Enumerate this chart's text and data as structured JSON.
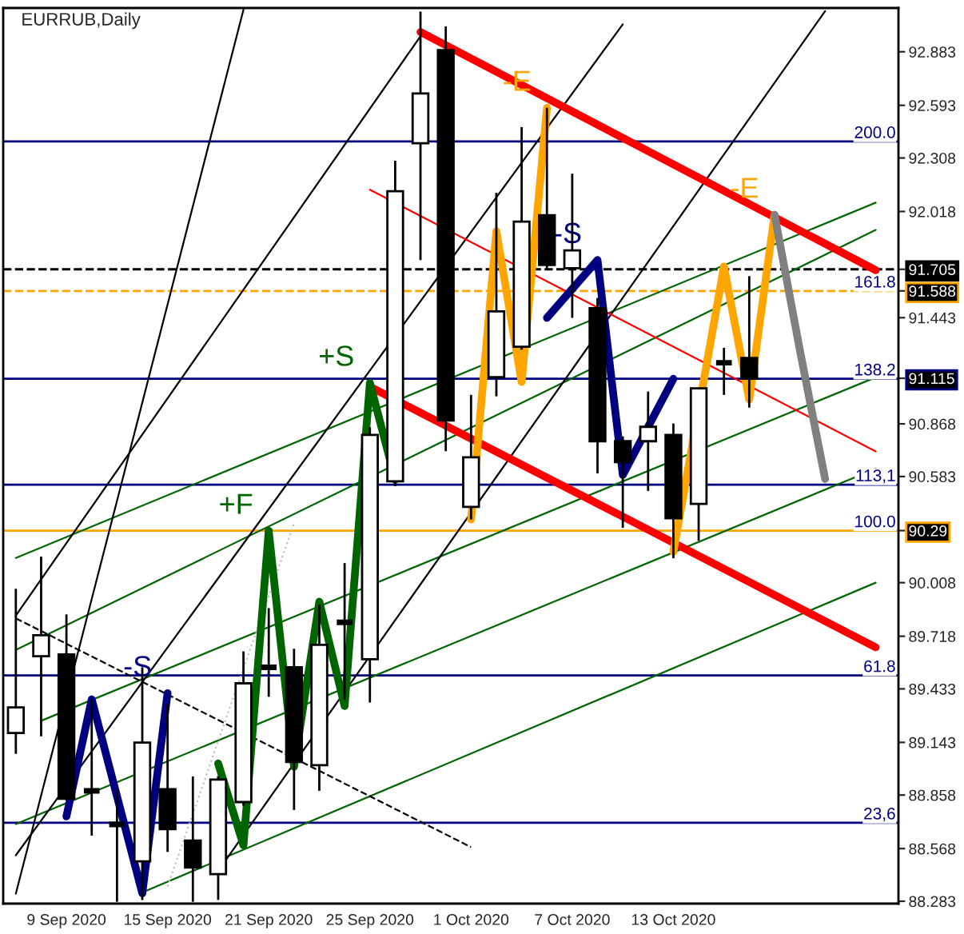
{
  "chart_data": {
    "type": "candlestick",
    "title": "EURRUB,Daily",
    "categories": [
      null,
      null,
      "9 Sep 2020",
      null,
      null,
      null,
      "15 Sep 2020",
      null,
      null,
      null,
      "21 Sep 2020",
      null,
      null,
      null,
      "25 Sep 2020",
      null,
      null,
      null,
      "1 Oct 2020",
      null,
      null,
      null,
      "7 Oct 2020",
      null,
      null,
      null,
      "13 Oct 2020",
      null,
      null,
      null,
      null,
      null,
      null,
      null,
      null
    ],
    "ohlc": [
      [
        89.194,
        89.975,
        89.081,
        89.333
      ],
      [
        89.61,
        90.149,
        89.176,
        89.723
      ],
      [
        89.619,
        89.836,
        88.829,
        88.838
      ],
      [
        88.881,
        89.376,
        88.638,
        88.881
      ],
      [
        88.699,
        88.89,
        88.28,
        88.699
      ],
      [
        88.499,
        89.55,
        88.29,
        89.142
      ],
      [
        88.89,
        89.35,
        88.55,
        88.673
      ],
      [
        88.612,
        88.959,
        88.28,
        88.465
      ],
      [
        88.43,
        88.96,
        88.29,
        88.942
      ],
      [
        88.82,
        89.636,
        88.8,
        89.463
      ],
      [
        89.55,
        89.87,
        89.39,
        89.55
      ],
      [
        89.55,
        89.65,
        88.777,
        89.037
      ],
      [
        89.02,
        89.89,
        88.881,
        89.671
      ],
      [
        89.793,
        90.114,
        89.376,
        89.793
      ],
      [
        89.593,
        90.85,
        89.359,
        90.808
      ],
      [
        90.557,
        92.293,
        90.53,
        92.128
      ],
      [
        92.388,
        93.1,
        91.755,
        92.657
      ],
      [
        92.892,
        93.02,
        90.72,
        90.886
      ],
      [
        90.418,
        91.025,
        90.35,
        90.687
      ],
      [
        91.121,
        92.119,
        91.017,
        91.477
      ],
      [
        91.286,
        92.475,
        91.27,
        91.963
      ],
      [
        91.998,
        92.58,
        91.7,
        91.728
      ],
      [
        91.711,
        92.223,
        91.442,
        91.807
      ],
      [
        91.494,
        91.55,
        90.6,
        90.774
      ],
      [
        90.774,
        90.8,
        90.305,
        90.661
      ],
      [
        90.774,
        91.043,
        90.505,
        90.852
      ],
      [
        90.808,
        90.87,
        90.14,
        90.357
      ],
      [
        90.435,
        91.06,
        90.235,
        91.06
      ],
      [
        91.199,
        91.28,
        91.025,
        91.199
      ],
      [
        91.225,
        91.668,
        90.956,
        91.112
      ],
      null,
      null,
      null,
      null,
      null
    ],
    "ylim": [
      88.27,
      93.12
    ],
    "yticks": [
      92.883,
      92.593,
      92.308,
      92.018,
      91.705,
      91.588,
      91.443,
      91.115,
      90.868,
      90.583,
      90.29,
      90.008,
      89.718,
      89.433,
      89.143,
      88.858,
      88.568,
      88.283
    ],
    "series": [
      {
        "type": "line",
        "color": "#006400",
        "values": [
          90.142,
          null,
          null,
          null,
          null,
          null,
          null,
          null,
          null,
          null,
          null,
          null,
          null,
          null,
          null,
          null,
          null,
          null,
          null,
          null,
          null,
          null,
          null,
          null,
          null,
          null,
          null,
          null,
          null,
          null,
          null,
          null,
          null,
          null,
          92.066
        ]
      },
      {
        "type": "line",
        "color": "#006400",
        "values": [
          89.644,
          null,
          null,
          null,
          null,
          null,
          null,
          null,
          null,
          null,
          null,
          null,
          null,
          null,
          null,
          null,
          null,
          null,
          null,
          null,
          null,
          null,
          null,
          null,
          null,
          null,
          null,
          null,
          null,
          null,
          null,
          null,
          null,
          null,
          91.918
        ]
      },
      {
        "type": "line",
        "color": "#006400",
        "values": [
          null,
          89.26,
          null,
          null,
          null,
          null,
          null,
          null,
          null,
          null,
          null,
          null,
          null,
          null,
          null,
          null,
          null,
          null,
          null,
          null,
          null,
          null,
          null,
          null,
          null,
          null,
          null,
          null,
          null,
          null,
          null,
          null,
          null,
          null,
          91.12
        ]
      },
      {
        "type": "line",
        "color": "#006400",
        "values": [
          88.701,
          null,
          null,
          null,
          null,
          null,
          null,
          null,
          null,
          null,
          null,
          null,
          null,
          null,
          null,
          null,
          null,
          null,
          null,
          null,
          null,
          null,
          null,
          null,
          null,
          null,
          null,
          null,
          null,
          null,
          null,
          null,
          null,
          null,
          90.625
        ]
      },
      {
        "type": "line",
        "color": "#006400",
        "values": [
          null,
          null,
          null,
          null,
          null,
          88.331,
          null,
          null,
          null,
          null,
          null,
          null,
          null,
          null,
          null,
          null,
          null,
          null,
          null,
          null,
          null,
          null,
          null,
          null,
          null,
          null,
          null,
          null,
          null,
          null,
          null,
          null,
          null,
          null,
          90.008
        ]
      },
      {
        "type": "line",
        "color": "#000000",
        "values": [
          89.83,
          null,
          null,
          null,
          null,
          null,
          null,
          null,
          null,
          null,
          null,
          null,
          null,
          null,
          null,
          null,
          92.967,
          null,
          null,
          null,
          null,
          null,
          null,
          null,
          null,
          null,
          null,
          null,
          null,
          null,
          null,
          null,
          null,
          null,
          null
        ]
      },
      {
        "type": "line",
        "color": "#000000",
        "values": [
          88.532,
          null,
          null,
          null,
          null,
          null,
          null,
          null,
          null,
          null,
          null,
          null,
          null,
          null,
          null,
          null,
          null,
          null,
          null,
          null,
          null,
          null,
          null,
          null,
          93.032,
          null,
          null,
          null,
          null,
          null,
          null,
          null,
          null,
          null,
          null
        ]
      },
      {
        "type": "line",
        "color": "#000000",
        "values": [
          null,
          null,
          null,
          null,
          null,
          null,
          null,
          null,
          88.447,
          null,
          null,
          null,
          null,
          null,
          null,
          null,
          null,
          null,
          null,
          null,
          null,
          null,
          null,
          null,
          null,
          null,
          null,
          null,
          null,
          null,
          null,
          null,
          93.103,
          null,
          null
        ]
      },
      {
        "type": "line",
        "color": "#000000",
        "values": [
          88.324,
          null,
          null,
          null,
          null,
          null,
          null,
          null,
          null,
          93.11,
          null,
          null,
          null,
          null,
          null,
          null,
          null,
          null,
          null,
          null,
          null,
          null,
          null,
          null,
          null,
          null,
          null,
          null,
          null,
          null,
          null,
          null,
          null,
          null,
          null
        ]
      },
      {
        "type": "line",
        "color": "#000000",
        "line_style": "dashed",
        "values": [
          89.815,
          null,
          null,
          null,
          null,
          null,
          null,
          null,
          null,
          null,
          null,
          null,
          null,
          null,
          null,
          null,
          null,
          null,
          88.576,
          null,
          null,
          null,
          null,
          null,
          null,
          null,
          null,
          null,
          null,
          null,
          null,
          null,
          null,
          null,
          null
        ]
      },
      {
        "type": "line",
        "color": "#c0c0c0",
        "line_style": "dotted",
        "values": [
          null,
          null,
          null,
          null,
          null,
          null,
          88.363,
          null,
          null,
          null,
          null,
          90.329,
          null,
          null,
          null,
          null,
          null,
          null,
          null,
          null,
          null,
          null,
          null,
          null,
          null,
          null,
          null,
          null,
          null,
          null,
          null,
          null,
          null,
          null,
          null
        ]
      },
      {
        "type": "line",
        "color": "#ff0000",
        "values": [
          null,
          null,
          null,
          null,
          null,
          null,
          null,
          null,
          null,
          null,
          null,
          null,
          null,
          null,
          null,
          null,
          92.99,
          null,
          null,
          null,
          null,
          null,
          null,
          null,
          null,
          92.345,
          null,
          null,
          null,
          null,
          null,
          null,
          null,
          null,
          91.7
        ]
      },
      {
        "type": "line",
        "color": "#ff0000",
        "values": [
          null,
          null,
          null,
          null,
          null,
          null,
          null,
          null,
          null,
          null,
          null,
          null,
          null,
          null,
          91.069,
          null,
          null,
          null,
          null,
          null,
          null,
          null,
          null,
          null,
          90.366,
          null,
          null,
          null,
          null,
          null,
          null,
          null,
          null,
          null,
          89.658
        ]
      },
      {
        "type": "line",
        "color": "#ff0000",
        "values": [
          null,
          null,
          null,
          null,
          null,
          null,
          null,
          null,
          null,
          null,
          null,
          null,
          null,
          null,
          92.136,
          null,
          null,
          null,
          null,
          null,
          null,
          null,
          null,
          null,
          null,
          null,
          null,
          null,
          null,
          null,
          null,
          null,
          null,
          null,
          90.719
        ]
      },
      {
        "type": "line",
        "name": "-S",
        "color": "#000080",
        "values": [
          null,
          null,
          88.742,
          89.376,
          null,
          88.326,
          89.41,
          null,
          null,
          null,
          null,
          null,
          null,
          null,
          null,
          null,
          null,
          null,
          null,
          null,
          null,
          null,
          null,
          null,
          null,
          null,
          null,
          null,
          null,
          null,
          null,
          null,
          null,
          null,
          null
        ]
      },
      {
        "type": "line",
        "name": "+F",
        "color": "#006400",
        "values": [
          null,
          null,
          null,
          null,
          null,
          null,
          null,
          null,
          89.029,
          88.586,
          90.288,
          null,
          null,
          null,
          null,
          null,
          null,
          null,
          null,
          null,
          null,
          null,
          null,
          null,
          null,
          null,
          null,
          null,
          null,
          null,
          null,
          null,
          null,
          null,
          null
        ]
      },
      {
        "type": "line",
        "name": "+S",
        "color": "#006400",
        "values": [
          null,
          null,
          null,
          null,
          null,
          null,
          null,
          null,
          null,
          null,
          90.288,
          89.012,
          89.905,
          89.34,
          91.09,
          90.565,
          null,
          null,
          null,
          null,
          null,
          null,
          null,
          null,
          null,
          null,
          null,
          null,
          null,
          null,
          null,
          null,
          null,
          null,
          null
        ]
      },
      {
        "type": "line",
        "name": "-E",
        "color": "#ffa500",
        "values": [
          null,
          null,
          null,
          null,
          null,
          null,
          null,
          null,
          null,
          null,
          null,
          null,
          null,
          null,
          null,
          null,
          null,
          null,
          90.35,
          91.911,
          91.095,
          92.579,
          null,
          null,
          null,
          null,
          null,
          null,
          null,
          null,
          null,
          null,
          null,
          null,
          null
        ]
      },
      {
        "type": "line",
        "name": "-S",
        "color": "#000080",
        "values": [
          null,
          null,
          null,
          null,
          null,
          null,
          null,
          null,
          null,
          null,
          null,
          null,
          null,
          null,
          null,
          null,
          null,
          null,
          null,
          null,
          null,
          91.442,
          null,
          91.755,
          90.591,
          null,
          91.112,
          null,
          null,
          null,
          null,
          null,
          null,
          null,
          null
        ]
      },
      {
        "type": "line",
        "name": "-E",
        "color": "#ffa500",
        "values": [
          null,
          null,
          null,
          null,
          null,
          null,
          null,
          null,
          null,
          null,
          null,
          null,
          null,
          null,
          null,
          null,
          null,
          null,
          null,
          null,
          null,
          null,
          null,
          null,
          null,
          null,
          90.175,
          null,
          91.72,
          91.0,
          92.0,
          null,
          null,
          null,
          null
        ]
      },
      {
        "type": "line",
        "color": "#808080",
        "values": [
          null,
          null,
          null,
          null,
          null,
          null,
          null,
          null,
          null,
          null,
          null,
          null,
          null,
          null,
          null,
          null,
          null,
          null,
          null,
          null,
          null,
          null,
          null,
          null,
          null,
          null,
          null,
          null,
          null,
          null,
          92.0,
          91.268,
          90.57,
          null,
          null
        ]
      }
    ],
    "ref_lines": [
      {
        "axis": "y",
        "value": 92.397,
        "color": "#000080"
      },
      {
        "axis": "y",
        "value": 91.112,
        "color": "#000080"
      },
      {
        "axis": "y",
        "value": 90.539,
        "color": "#000080"
      },
      {
        "axis": "y",
        "value": 89.506,
        "color": "#000080"
      },
      {
        "axis": "y",
        "value": 88.708,
        "color": "#000080"
      },
      {
        "axis": "y",
        "value": 91.705,
        "color": "#000000",
        "line_style": "dashed"
      },
      {
        "axis": "y",
        "value": 91.588,
        "color": "#ffa500",
        "line_style": "dashed"
      },
      {
        "axis": "y",
        "value": 90.29,
        "color": "#ffa500"
      }
    ],
    "annotations": [
      {
        "text": "200.0",
        "y": 92.397
      },
      {
        "text": "161.8",
        "y": 91.588
      },
      {
        "text": "138.2",
        "y": 91.112
      },
      {
        "text": "113,1",
        "y": 90.539
      },
      {
        "text": "100.0",
        "y": 90.29
      },
      {
        "text": "61.8",
        "y": 89.506
      },
      {
        "text": "23,6",
        "y": 88.708
      }
    ]
  }
}
